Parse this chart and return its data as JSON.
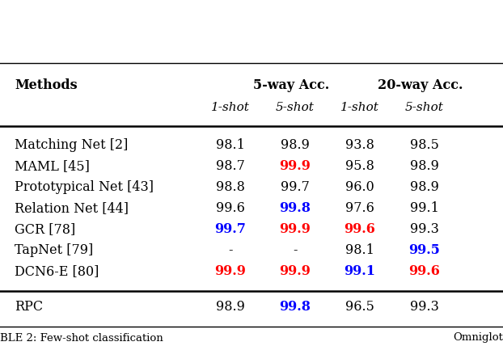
{
  "bg_color": "#ffffff",
  "rows": [
    [
      "Matching Net [2]",
      "98.1",
      "98.9",
      "93.8",
      "98.5"
    ],
    [
      "MAML [45]",
      "98.7",
      "99.9",
      "95.8",
      "98.9"
    ],
    [
      "Prototypical Net [43]",
      "98.8",
      "99.7",
      "96.0",
      "98.9"
    ],
    [
      "Relation Net [44]",
      "99.6",
      "99.8",
      "97.6",
      "99.1"
    ],
    [
      "GCR [78]",
      "99.7",
      "99.9",
      "99.6",
      "99.3"
    ],
    [
      "TapNet [79]",
      "-",
      "-",
      "98.1",
      "99.5"
    ],
    [
      "DCN6-E [80]",
      "99.9",
      "99.9",
      "99.1",
      "99.6"
    ],
    [
      "RPC",
      "98.9",
      "99.8",
      "96.5",
      "99.3"
    ]
  ],
  "cell_colors": [
    [
      "black",
      "black",
      "black",
      "black",
      "black"
    ],
    [
      "black",
      "black",
      "red",
      "black",
      "black"
    ],
    [
      "black",
      "black",
      "black",
      "black",
      "black"
    ],
    [
      "black",
      "black",
      "blue",
      "black",
      "black"
    ],
    [
      "black",
      "blue",
      "red",
      "red",
      "black"
    ],
    [
      "black",
      "black",
      "black",
      "black",
      "blue"
    ],
    [
      "black",
      "red",
      "red",
      "blue",
      "red"
    ],
    [
      "black",
      "black",
      "blue",
      "black",
      "black"
    ]
  ],
  "cell_bold": [
    [
      false,
      false,
      false,
      false,
      false
    ],
    [
      false,
      false,
      true,
      false,
      false
    ],
    [
      false,
      false,
      false,
      false,
      false
    ],
    [
      false,
      false,
      true,
      false,
      false
    ],
    [
      false,
      true,
      true,
      true,
      false
    ],
    [
      false,
      false,
      false,
      false,
      true
    ],
    [
      false,
      true,
      true,
      true,
      true
    ],
    [
      false,
      false,
      true,
      false,
      false
    ]
  ],
  "col_xs_inch": [
    0.18,
    2.85,
    3.65,
    4.45,
    5.25
  ],
  "figsize": [
    6.22,
    4.28
  ],
  "dpi": 100,
  "base_fs": 11.5,
  "caption_left": "BLE 2: Few-shot classification",
  "caption_right": "Omniglot"
}
